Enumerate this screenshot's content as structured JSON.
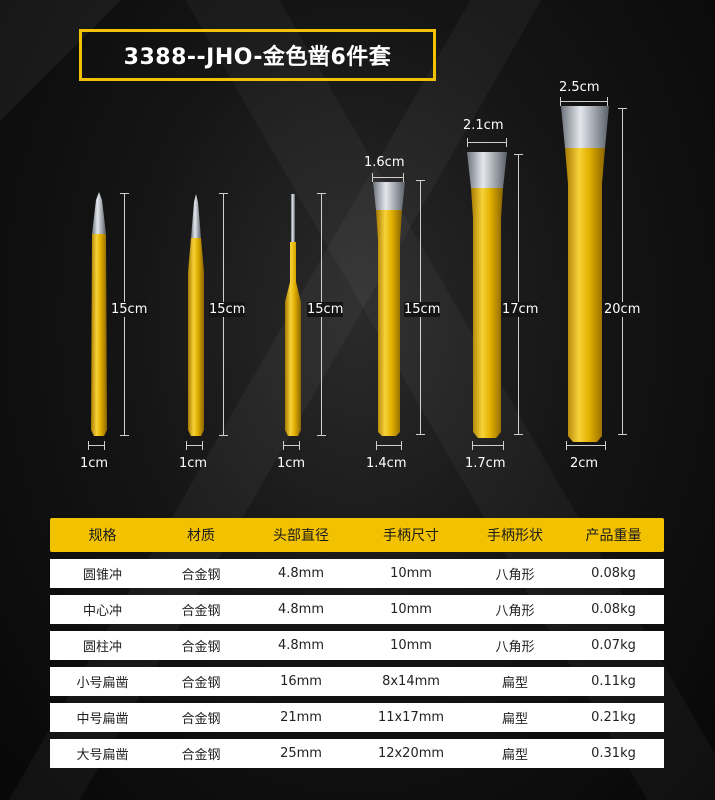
{
  "title": "3388--JHO-金色凿6件套",
  "tools": [
    {
      "name": "圆锥冲",
      "length_label": "15cm",
      "width_label": "1cm"
    },
    {
      "name": "中心冲",
      "length_label": "15cm",
      "width_label": "1cm"
    },
    {
      "name": "圆柱冲",
      "length_label": "15cm",
      "width_label": "1cm"
    },
    {
      "name": "小号扁凿",
      "length_label": "15cm",
      "width_label": "1.4cm",
      "tip_label": "1.6cm"
    },
    {
      "name": "中号扁凿",
      "length_label": "17cm",
      "width_label": "1.7cm",
      "tip_label": "2.1cm"
    },
    {
      "name": "大号扁凿",
      "length_label": "20cm",
      "width_label": "2cm",
      "tip_label": "2.5cm"
    }
  ],
  "table": {
    "headers": [
      "规格",
      "材质",
      "头部直径",
      "手柄尺寸",
      "手柄形状",
      "产品重量"
    ],
    "rows": [
      [
        "圆锥冲",
        "合金钢",
        "4.8mm",
        "10mm",
        "八角形",
        "0.08kg"
      ],
      [
        "中心冲",
        "合金钢",
        "4.8mm",
        "10mm",
        "八角形",
        "0.08kg"
      ],
      [
        "圆柱冲",
        "合金钢",
        "4.8mm",
        "10mm",
        "八角形",
        "0.07kg"
      ],
      [
        "小号扁凿",
        "合金钢",
        "16mm",
        "8x14mm",
        "扁型",
        "0.11kg"
      ],
      [
        "中号扁凿",
        "合金钢",
        "21mm",
        "11x17mm",
        "扁型",
        "0.21kg"
      ],
      [
        "大号扁凿",
        "合金钢",
        "25mm",
        "12x20mm",
        "扁型",
        "0.31kg"
      ]
    ]
  },
  "colors": {
    "accent": "#f2c200",
    "gold_dark": "#c99a00",
    "steel": "#c8ccd2"
  }
}
